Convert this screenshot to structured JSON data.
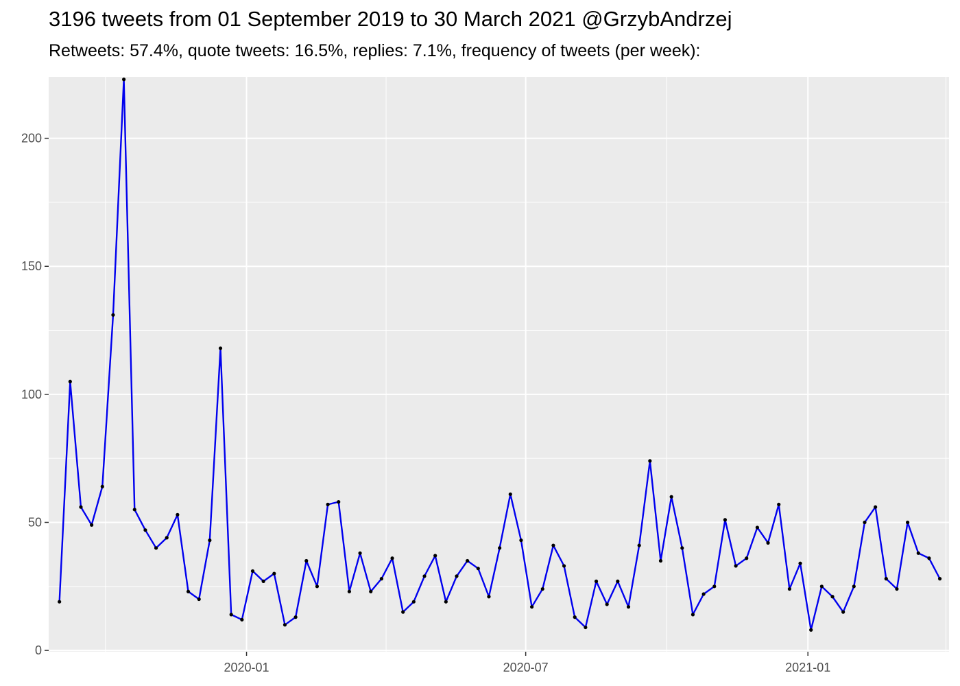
{
  "title": "3196 tweets from 01 September 2019 to 30 March 2021 @GrzybAndrzej",
  "subtitle": "Retweets: 57.4%, quote tweets: 16.5%, replies: 7.1%, frequency of tweets (per week):",
  "colors": {
    "panel": "#ebebeb",
    "grid": "#ffffff",
    "line": "#0000ee",
    "point": "#000000"
  },
  "chart_data": {
    "type": "line",
    "title": "3196 tweets from 01 September 2019 to 30 March 2021 @GrzybAndrzej",
    "subtitle": "Retweets: 57.4%, quote tweets: 16.5%, replies: 7.1%, frequency of tweets (per week):",
    "xlabel": "",
    "ylabel": "",
    "x_type": "date",
    "xlim": [
      "2019-08-25",
      "2021-04-03"
    ],
    "ylim": [
      -0.5,
      224
    ],
    "grid": true,
    "legend": "none",
    "y_ticks": [
      0,
      50,
      100,
      150,
      200
    ],
    "x_ticks": [
      {
        "date": "2020-01-01",
        "label": "2020-01"
      },
      {
        "date": "2020-07-01",
        "label": "2020-07"
      },
      {
        "date": "2021-01-01",
        "label": "2021-01"
      }
    ],
    "x_minor_ticks": [
      "2019-10-01",
      "2020-04-01",
      "2020-10-01",
      "2021-04-01"
    ],
    "series": [
      {
        "x": [
          "2019-09-01",
          "2019-09-08",
          "2019-09-15",
          "2019-09-22",
          "2019-09-29",
          "2019-10-06",
          "2019-10-13",
          "2019-10-20",
          "2019-10-27",
          "2019-11-03",
          "2019-11-10",
          "2019-11-17",
          "2019-11-24",
          "2019-12-01",
          "2019-12-08",
          "2019-12-15",
          "2019-12-22",
          "2019-12-29",
          "2020-01-05",
          "2020-01-12",
          "2020-01-19",
          "2020-01-26",
          "2020-02-02",
          "2020-02-09",
          "2020-02-16",
          "2020-02-23",
          "2020-03-01",
          "2020-03-08",
          "2020-03-15",
          "2020-03-22",
          "2020-03-29",
          "2020-04-05",
          "2020-04-12",
          "2020-04-19",
          "2020-04-26",
          "2020-05-03",
          "2020-05-10",
          "2020-05-17",
          "2020-05-24",
          "2020-05-31",
          "2020-06-07",
          "2020-06-14",
          "2020-06-21",
          "2020-06-28",
          "2020-07-05",
          "2020-07-12",
          "2020-07-19",
          "2020-07-26",
          "2020-08-02",
          "2020-08-09",
          "2020-08-16",
          "2020-08-23",
          "2020-08-30",
          "2020-09-06",
          "2020-09-13",
          "2020-09-20",
          "2020-09-27",
          "2020-10-04",
          "2020-10-11",
          "2020-10-18",
          "2020-10-25",
          "2020-11-01",
          "2020-11-08",
          "2020-11-15",
          "2020-11-22",
          "2020-11-29",
          "2020-12-06",
          "2020-12-13",
          "2020-12-20",
          "2020-12-27",
          "2021-01-03",
          "2021-01-10",
          "2021-01-17",
          "2021-01-24",
          "2021-01-31",
          "2021-02-07",
          "2021-02-14",
          "2021-02-21",
          "2021-02-28",
          "2021-03-07",
          "2021-03-14",
          "2021-03-21",
          "2021-03-28"
        ],
        "values": [
          19,
          105,
          56,
          49,
          64,
          131,
          223,
          55,
          47,
          40,
          44,
          53,
          23,
          20,
          43,
          118,
          14,
          12,
          31,
          27,
          30,
          10,
          13,
          35,
          25,
          57,
          58,
          23,
          38,
          23,
          28,
          36,
          15,
          19,
          29,
          37,
          19,
          29,
          35,
          32,
          21,
          40,
          61,
          43,
          17,
          24,
          41,
          33,
          13,
          9,
          27,
          18,
          27,
          17,
          41,
          74,
          35,
          60,
          40,
          14,
          22,
          25,
          51,
          33,
          36,
          48,
          42,
          57,
          24,
          34,
          8,
          25,
          21,
          15,
          25,
          50,
          56,
          28,
          24,
          50,
          38,
          36,
          28
        ]
      }
    ]
  }
}
